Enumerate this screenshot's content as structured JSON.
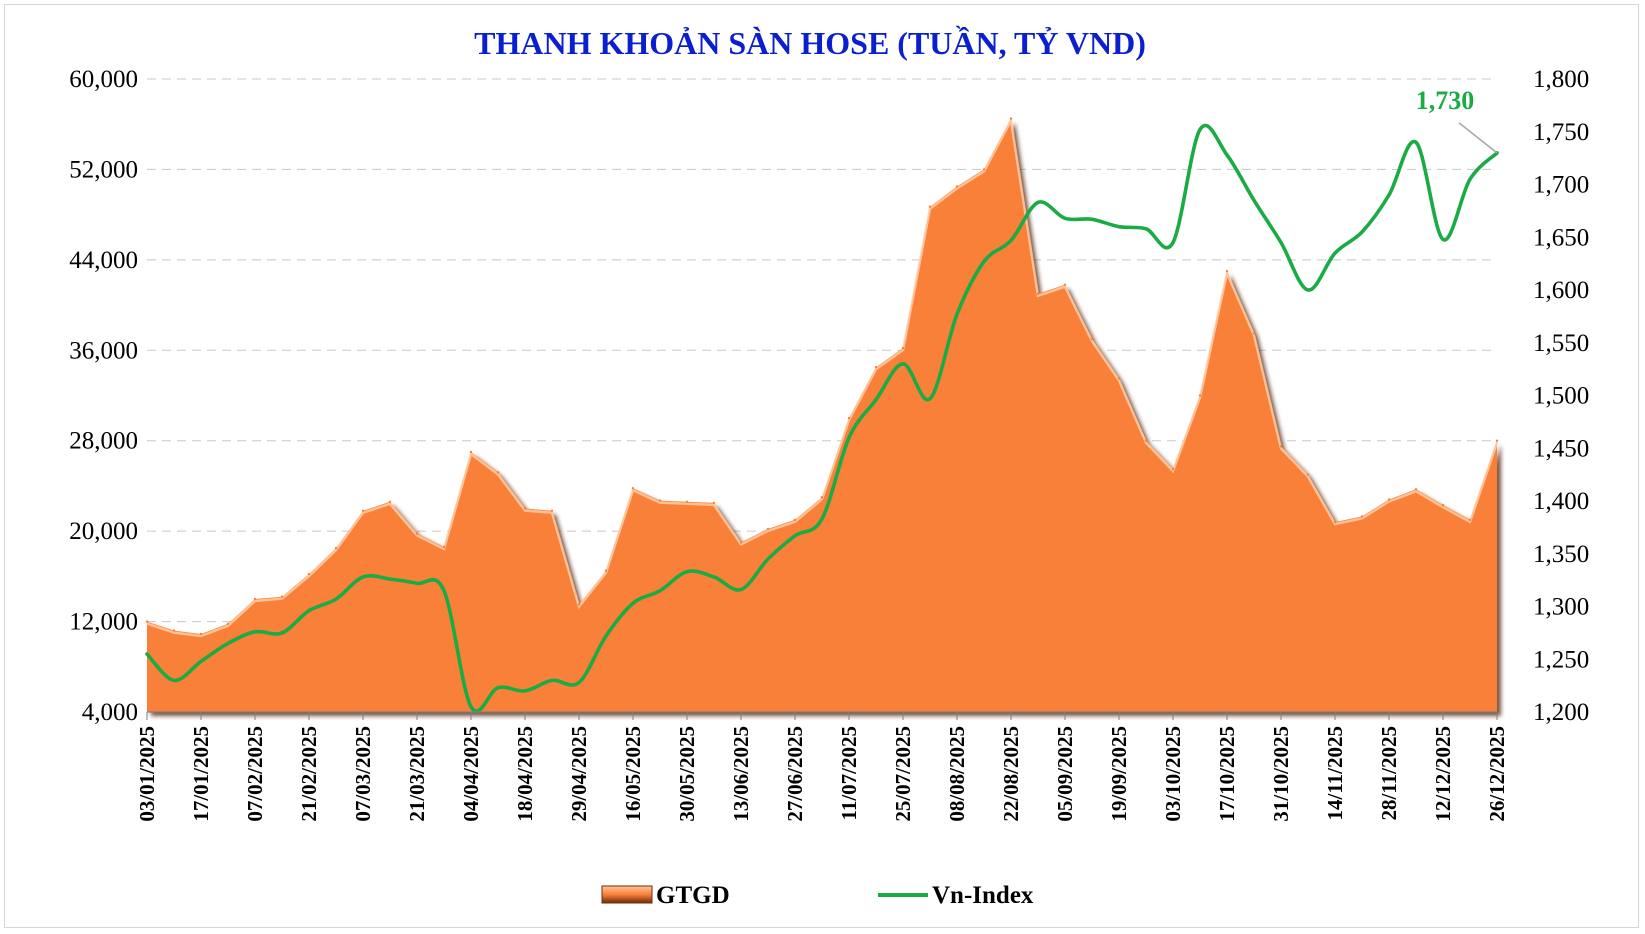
{
  "chart_data": {
    "type": "area+line",
    "title": "THANH KHOẢN SÀN HOSE (TUẦN, TỶ VND)",
    "y_left": {
      "ticks": [
        "4,000",
        "12,000",
        "20,000",
        "28,000",
        "36,000",
        "44,000",
        "52,000",
        "60,000"
      ],
      "lim": [
        4000,
        60000
      ]
    },
    "y_right": {
      "ticks": [
        "1,200",
        "1,250",
        "1,300",
        "1,350",
        "1,400",
        "1,450",
        "1,500",
        "1,550",
        "1,600",
        "1,650",
        "1,700",
        "1,750",
        "1,800"
      ],
      "lim": [
        1200,
        1800
      ]
    },
    "x_labels": [
      "03/01/2025",
      "17/01/2025",
      "07/02/2025",
      "21/02/2025",
      "07/03/2025",
      "21/03/2025",
      "04/04/2025",
      "18/04/2025",
      "29/04/2025",
      "16/05/2025",
      "30/05/2025",
      "13/06/2025",
      "27/06/2025",
      "11/07/2025",
      "25/07/2025",
      "08/08/2025",
      "22/08/2025",
      "05/09/2025",
      "19/09/2025",
      "03/10/2025",
      "17/10/2025",
      "31/10/2025",
      "14/11/2025",
      "28/11/2025",
      "12/12/2025",
      "26/12/2025"
    ],
    "series": [
      {
        "name": "GTGD",
        "axis": "left",
        "kind": "area",
        "color": "#f98039",
        "values": [
          12000,
          11200,
          10900,
          11800,
          14000,
          14200,
          16200,
          18500,
          21800,
          22600,
          19800,
          18600,
          27000,
          25200,
          22000,
          21800,
          13500,
          16500,
          23800,
          22700,
          22600,
          22500,
          19000,
          20200,
          21000,
          23000,
          30000,
          34500,
          36200,
          48700,
          50500,
          52000,
          56500,
          41000,
          41800,
          37000,
          33500,
          28000,
          25500,
          32000,
          43000,
          37500,
          27500,
          25000,
          20800,
          21300,
          22800,
          23700,
          22300,
          21000,
          28000
        ]
      },
      {
        "name": "Vn-Index",
        "axis": "right",
        "kind": "line",
        "color": "#1aab45",
        "values": [
          1255,
          1230,
          1248,
          1265,
          1276,
          1275,
          1296,
          1307,
          1328,
          1326,
          1322,
          1315,
          1205,
          1223,
          1220,
          1230,
          1228,
          1272,
          1303,
          1315,
          1333,
          1328,
          1316,
          1345,
          1367,
          1383,
          1460,
          1496,
          1530,
          1497,
          1577,
          1627,
          1647,
          1683,
          1668,
          1667,
          1660,
          1658,
          1645,
          1752,
          1728,
          1685,
          1645,
          1600,
          1635,
          1655,
          1690,
          1740,
          1648,
          1705,
          1730
        ]
      }
    ],
    "annotation": {
      "label": "1,730",
      "series": "Vn-Index",
      "index": 50
    },
    "legend": {
      "position": "bottom-center",
      "items": [
        "GTGD",
        "Vn-Index"
      ]
    }
  }
}
